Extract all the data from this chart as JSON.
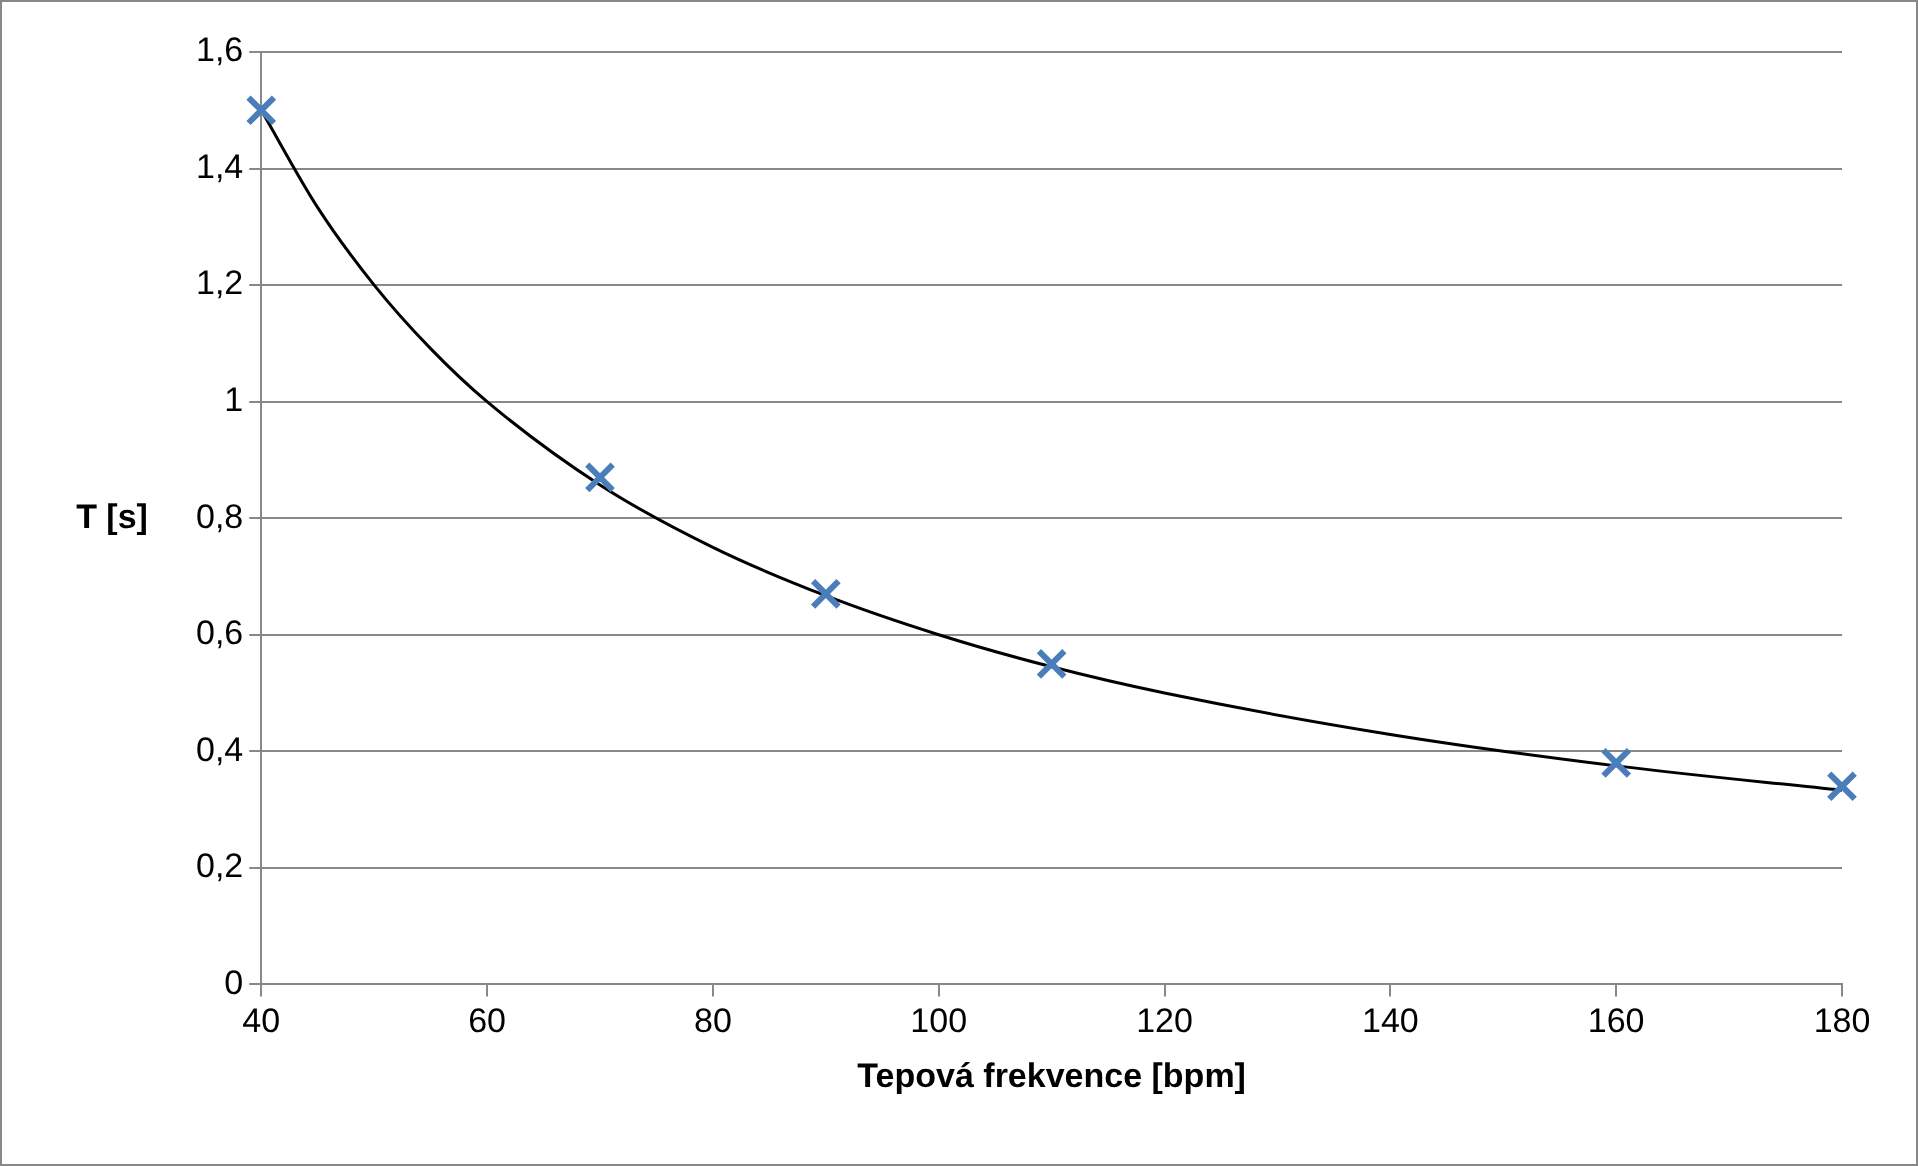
{
  "chart_data": {
    "type": "scatter",
    "xlabel": "Tepová frekvence [bpm]",
    "ylabel": "T [s]",
    "series": [
      {
        "color": "#4a7ebb",
        "marker": "cross",
        "x": [
          40,
          70,
          90,
          110,
          160,
          180
        ],
        "values": [
          1.5,
          0.87,
          0.67,
          0.55,
          0.38,
          0.34
        ]
      },
      {
        "type": "line",
        "color": "#000000",
        "marker": "none",
        "x": [
          40,
          45,
          50,
          55,
          60,
          70,
          80,
          90,
          100,
          110,
          120,
          140,
          160,
          180
        ],
        "values": [
          1.5,
          1.333,
          1.2,
          1.091,
          1,
          0.857,
          0.75,
          0.667,
          0.6,
          0.545,
          0.5,
          0.429,
          0.375,
          0.333
        ]
      }
    ],
    "xlim": [
      40,
      180
    ],
    "xticks": [
      40,
      60,
      80,
      100,
      120,
      140,
      160,
      180
    ],
    "ylim": [
      0,
      1.6
    ],
    "yticks": [
      0,
      {
        "value": 0.2,
        "label": "0,2"
      },
      {
        "value": 0.4,
        "label": "0,4"
      },
      {
        "value": 0.6,
        "label": "0,6"
      },
      {
        "value": 0.8,
        "label": "0,8"
      },
      1,
      {
        "value": 1.2,
        "label": "1,2"
      },
      {
        "value": 1.4,
        "label": "1,4"
      },
      {
        "value": 1.6,
        "label": "1,6"
      }
    ],
    "grid": "y",
    "legend": false
  }
}
